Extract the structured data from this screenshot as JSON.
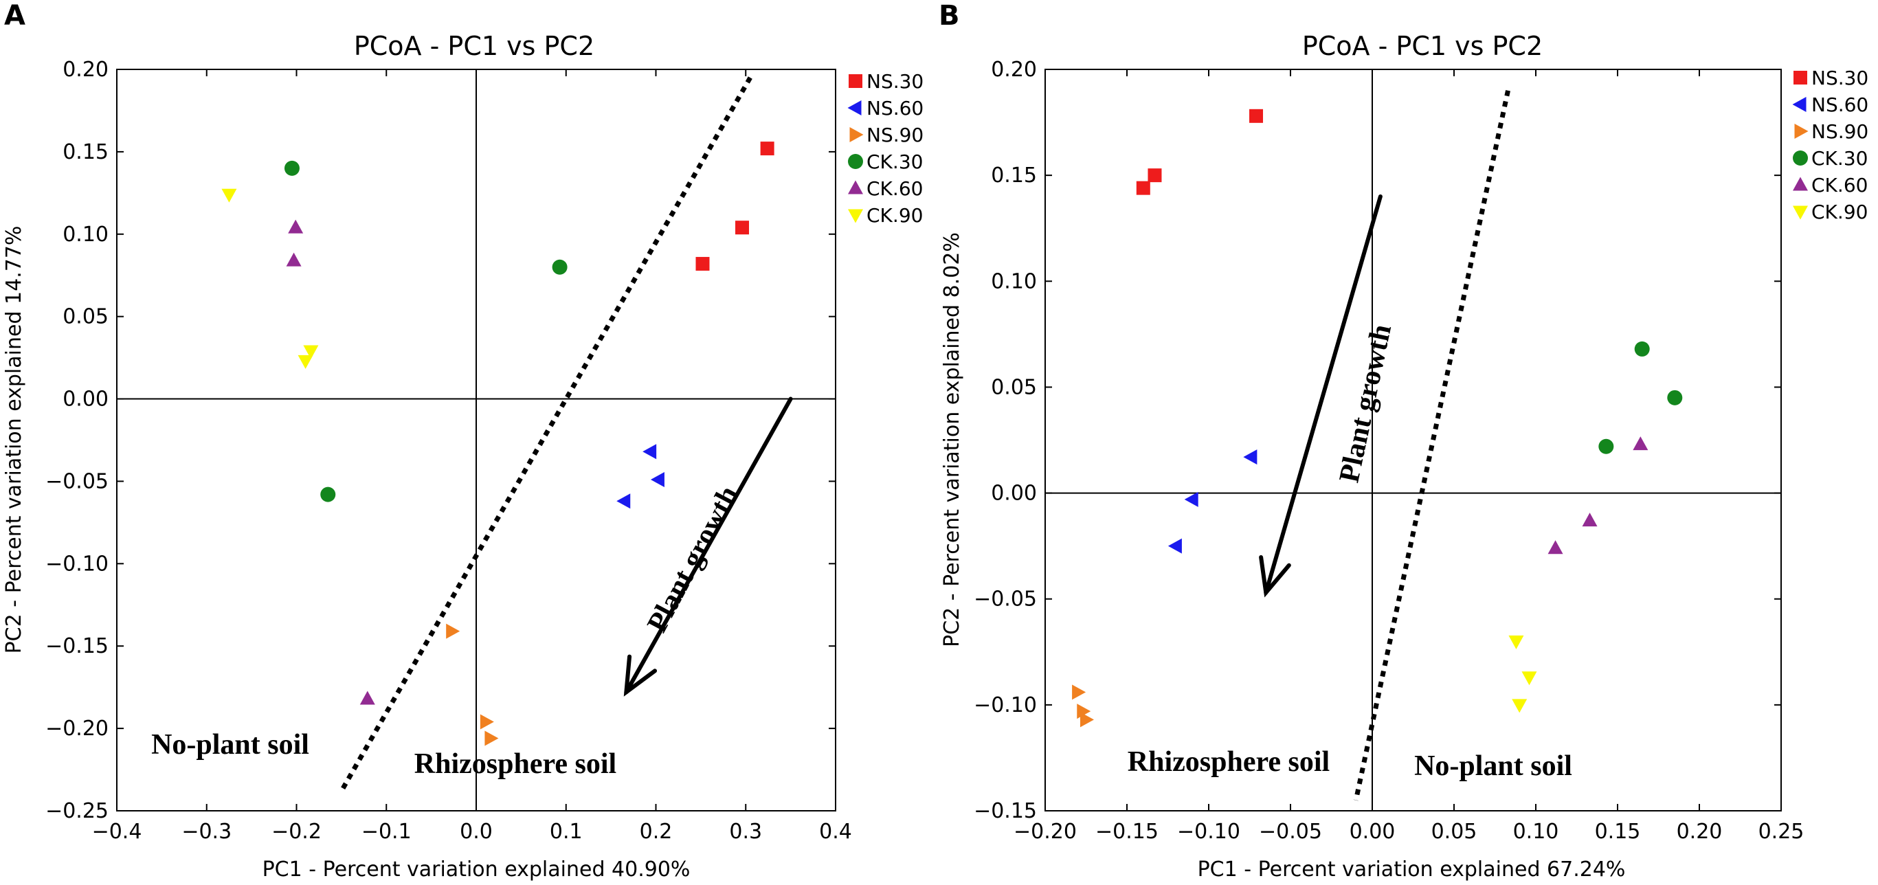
{
  "chart_data": [
    {
      "panel": "A",
      "type": "scatter",
      "title": "PCoA - PC1 vs PC2",
      "xlabel": "PC1 - Percent variation explained 40.90%",
      "ylabel": "PC2 - Percent variation explained 14.77%",
      "xlim": [
        -0.4,
        0.4
      ],
      "ylim": [
        -0.25,
        0.2
      ],
      "xticks": [
        -0.4,
        -0.3,
        -0.2,
        -0.1,
        0.0,
        0.1,
        0.2,
        0.3,
        0.4
      ],
      "xtick_labels": [
        "−0.4",
        "−0.3",
        "−0.2",
        "−0.1",
        "0.0",
        "0.1",
        "0.2",
        "0.3",
        "0.4"
      ],
      "yticks": [
        0.2,
        0.15,
        0.1,
        0.05,
        0.0,
        -0.05,
        -0.1,
        -0.15,
        -0.2,
        -0.25
      ],
      "ytick_labels": [
        "0.20",
        "0.15",
        "0.10",
        "0.05",
        "0.00",
        "−0.05",
        "−0.10",
        "−0.15",
        "−0.20",
        "−0.25"
      ],
      "series": [
        {
          "name": "NS.30",
          "marker": "square",
          "color": "#ee1c1c",
          "points": [
            [
              0.252,
              0.082
            ],
            [
              0.296,
              0.104
            ],
            [
              0.324,
              0.152
            ]
          ]
        },
        {
          "name": "NS.60",
          "marker": "triangle-left",
          "color": "#1a1aee",
          "points": [
            [
              0.165,
              -0.062
            ],
            [
              0.194,
              -0.032
            ],
            [
              0.203,
              -0.049
            ]
          ]
        },
        {
          "name": "NS.90",
          "marker": "triangle-right",
          "color": "#f08020",
          "points": [
            [
              -0.027,
              -0.141
            ],
            [
              0.011,
              -0.196
            ],
            [
              0.016,
              -0.206
            ]
          ]
        },
        {
          "name": "CK.30",
          "marker": "circle",
          "color": "#13861d",
          "points": [
            [
              -0.205,
              0.14
            ],
            [
              0.093,
              0.08
            ],
            [
              -0.165,
              -0.058
            ]
          ]
        },
        {
          "name": "CK.60",
          "marker": "triangle-up",
          "color": "#922b92",
          "points": [
            [
              -0.201,
              0.104
            ],
            [
              -0.203,
              0.084
            ],
            [
              -0.121,
              -0.182
            ]
          ]
        },
        {
          "name": "CK.90",
          "marker": "triangle-down",
          "color": "#f8f800",
          "points": [
            [
              -0.275,
              0.124
            ],
            [
              -0.184,
              0.029
            ],
            [
              -0.19,
              0.023
            ]
          ]
        }
      ],
      "divider": [
        [
          0.305,
          0.195
        ],
        [
          -0.15,
          -0.238
        ]
      ],
      "arrow": {
        "from": [
          0.35,
          0.0
        ],
        "to": [
          0.167,
          -0.178
        ]
      },
      "annotations": {
        "arrow_label": "Plant growth",
        "region_left": "No-plant soil",
        "region_right": "Rhizosphere soil"
      }
    },
    {
      "panel": "B",
      "type": "scatter",
      "title": "PCoA - PC1 vs PC2",
      "xlabel": "PC1 - Percent variation explained 67.24%",
      "ylabel": "PC2 - Percent variation explained 8.02%",
      "xlim": [
        -0.2,
        0.25
      ],
      "ylim": [
        -0.15,
        0.2
      ],
      "xticks": [
        -0.2,
        -0.15,
        -0.1,
        -0.05,
        0.0,
        0.05,
        0.1,
        0.15,
        0.2,
        0.25
      ],
      "xtick_labels": [
        "−0.20",
        "−0.15",
        "−0.10",
        "−0.05",
        "0.00",
        "0.05",
        "0.10",
        "0.15",
        "0.20",
        "0.25"
      ],
      "yticks": [
        0.2,
        0.15,
        0.1,
        0.05,
        0.0,
        -0.05,
        -0.1,
        -0.15
      ],
      "ytick_labels": [
        "0.20",
        "0.15",
        "0.10",
        "0.05",
        "0.00",
        "−0.05",
        "−0.10",
        "−0.15"
      ],
      "series": [
        {
          "name": "NS.30",
          "marker": "square",
          "color": "#ee1c1c",
          "points": [
            [
              -0.14,
              0.144
            ],
            [
              -0.133,
              0.15
            ],
            [
              -0.071,
              0.178
            ]
          ]
        },
        {
          "name": "NS.60",
          "marker": "triangle-left",
          "color": "#1a1aee",
          "points": [
            [
              -0.074,
              0.017
            ],
            [
              -0.11,
              -0.003
            ],
            [
              -0.12,
              -0.025
            ]
          ]
        },
        {
          "name": "NS.90",
          "marker": "triangle-right",
          "color": "#f08020",
          "points": [
            [
              -0.18,
              -0.094
            ],
            [
              -0.177,
              -0.103
            ],
            [
              -0.175,
              -0.107
            ]
          ]
        },
        {
          "name": "CK.30",
          "marker": "circle",
          "color": "#13861d",
          "points": [
            [
              0.165,
              0.068
            ],
            [
              0.185,
              0.045
            ],
            [
              0.143,
              0.022
            ]
          ]
        },
        {
          "name": "CK.60",
          "marker": "triangle-up",
          "color": "#922b92",
          "points": [
            [
              0.164,
              0.023
            ],
            [
              0.133,
              -0.013
            ],
            [
              0.112,
              -0.026
            ]
          ]
        },
        {
          "name": "CK.90",
          "marker": "triangle-down",
          "color": "#f8f800",
          "points": [
            [
              0.088,
              -0.07
            ],
            [
              0.096,
              -0.087
            ],
            [
              0.09,
              -0.1
            ]
          ]
        }
      ],
      "divider": [
        [
          0.083,
          0.19
        ],
        [
          -0.01,
          -0.145
        ]
      ],
      "arrow": {
        "from": [
          0.005,
          0.14
        ],
        "to": [
          -0.065,
          -0.047
        ]
      },
      "annotations": {
        "arrow_label": "Plant growth",
        "region_left": "Rhizosphere soil",
        "region_right": "No-plant soil"
      }
    }
  ]
}
